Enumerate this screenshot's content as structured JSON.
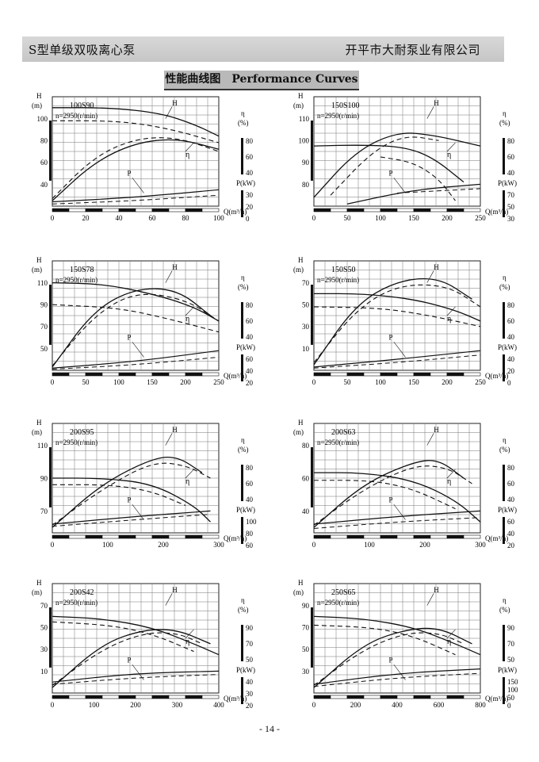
{
  "header": {
    "left": "S型单级双吸离心泵",
    "right": "开平市大耐泵业有限公司"
  },
  "title": "性能曲线图　Performance Curves",
  "page_number": "- 14 -",
  "chart_data": [
    {
      "type": "line",
      "model": "100S90",
      "speed": "n=2950(r/min)",
      "h_ticks": [
        "100",
        "80",
        "60",
        "40"
      ],
      "h_label": "H",
      "h_unit": "(m)",
      "eta_ticks": [
        "80",
        "60",
        "40"
      ],
      "eta_label": "η",
      "eta_unit": "(%)",
      "p_ticks": [
        "30",
        "20",
        "0"
      ],
      "p_label": "P(kW)",
      "x_ticks": [
        "0",
        "20",
        "40",
        "60",
        "80",
        "100"
      ],
      "x_label": "Q(m³/h)",
      "curve_labels": [
        "H",
        "η",
        "P"
      ]
    },
    {
      "type": "line",
      "model": "150S100",
      "speed": "n=2950(r/min)",
      "h_ticks": [
        "110",
        "100",
        "90",
        "80"
      ],
      "h_label": "H",
      "h_unit": "(m)",
      "eta_ticks": [
        "80",
        "60",
        "40"
      ],
      "eta_label": "η",
      "eta_unit": "(%)",
      "p_ticks": [
        "70",
        "50",
        "30"
      ],
      "p_label": "P(kW)",
      "x_ticks": [
        "0",
        "50",
        "100",
        "150",
        "200",
        "250"
      ],
      "x_label": "Q(m³/h)",
      "curve_labels": [
        "H",
        "η",
        "P"
      ]
    },
    {
      "type": "line",
      "model": "150S78",
      "speed": "n=2950(r/min)",
      "h_ticks": [
        "110",
        "90",
        "70",
        "50"
      ],
      "h_label": "H",
      "h_unit": "(m)",
      "eta_ticks": [
        "80",
        "60",
        "40"
      ],
      "eta_label": "η",
      "eta_unit": "(%)",
      "p_ticks": [
        "60",
        "40",
        "20"
      ],
      "p_label": "P(kW)",
      "x_ticks": [
        "0",
        "50",
        "100",
        "150",
        "200",
        "250"
      ],
      "x_label": "Q(m³/h)",
      "curve_labels": [
        "H",
        "η",
        "P"
      ]
    },
    {
      "type": "line",
      "model": "150S50",
      "speed": "n=2950(r/min)",
      "h_ticks": [
        "70",
        "50",
        "30",
        "10"
      ],
      "h_label": "H",
      "h_unit": "(m)",
      "eta_ticks": [
        "80",
        "60",
        "40"
      ],
      "eta_label": "η",
      "eta_unit": "(%)",
      "p_ticks": [
        "40",
        "20",
        "0"
      ],
      "p_label": "P(kW)",
      "x_ticks": [
        "0",
        "50",
        "100",
        "150",
        "200",
        "250"
      ],
      "x_label": "Q(m³/h)",
      "curve_labels": [
        "H",
        "η",
        "P"
      ]
    },
    {
      "type": "line",
      "model": "200S95",
      "speed": "n=2950(r/min)",
      "h_ticks": [
        "110",
        "90",
        "70"
      ],
      "h_label": "H",
      "h_unit": "(m)",
      "eta_ticks": [
        "80",
        "60",
        "40"
      ],
      "eta_label": "η",
      "eta_unit": "(%)",
      "p_ticks": [
        "100",
        "80",
        "60"
      ],
      "p_label": "P(kW)",
      "x_ticks": [
        "0",
        "100",
        "200",
        "300"
      ],
      "x_label": "Q(m³/h)",
      "curve_labels": [
        "H",
        "η",
        "P"
      ]
    },
    {
      "type": "line",
      "model": "200S63",
      "speed": "n=2950(r/min)",
      "h_ticks": [
        "80",
        "60",
        "40"
      ],
      "h_label": "H",
      "h_unit": "(m)",
      "eta_ticks": [
        "80",
        "60",
        "40"
      ],
      "eta_label": "η",
      "eta_unit": "(%)",
      "p_ticks": [
        "60",
        "40",
        "20"
      ],
      "p_label": "P(kW)",
      "x_ticks": [
        "0",
        "100",
        "200",
        "300"
      ],
      "x_label": "Q(m³/h)",
      "curve_labels": [
        "H",
        "η",
        "P"
      ]
    },
    {
      "type": "line",
      "model": "200S42",
      "speed": "n=2950(r/min)",
      "h_ticks": [
        "70",
        "50",
        "30",
        "10"
      ],
      "h_label": "H",
      "h_unit": "(m)",
      "eta_ticks": [
        "90",
        "70",
        "50"
      ],
      "eta_label": "η",
      "eta_unit": "(%)",
      "p_ticks": [
        "40",
        "30",
        "20"
      ],
      "p_label": "P(kW)",
      "x_ticks": [
        "0",
        "100",
        "200",
        "300",
        "400"
      ],
      "x_label": "Q(m³/h)",
      "curve_labels": [
        "H",
        "η",
        "P"
      ]
    },
    {
      "type": "line",
      "model": "250S65",
      "speed": "n=2950(r/min)",
      "h_ticks": [
        "90",
        "70",
        "50",
        "30"
      ],
      "h_label": "H",
      "h_unit": "(m)",
      "eta_ticks": [
        "90",
        "70",
        "50"
      ],
      "eta_label": "η",
      "eta_unit": "(%)",
      "p_ticks": [
        "150",
        "100",
        "50",
        "0"
      ],
      "p_label": "P(kW)",
      "x_ticks": [
        "0",
        "200",
        "400",
        "600",
        "800"
      ],
      "x_label": "Q(m³/h)",
      "curve_labels": [
        "H",
        "η",
        "P"
      ]
    }
  ]
}
